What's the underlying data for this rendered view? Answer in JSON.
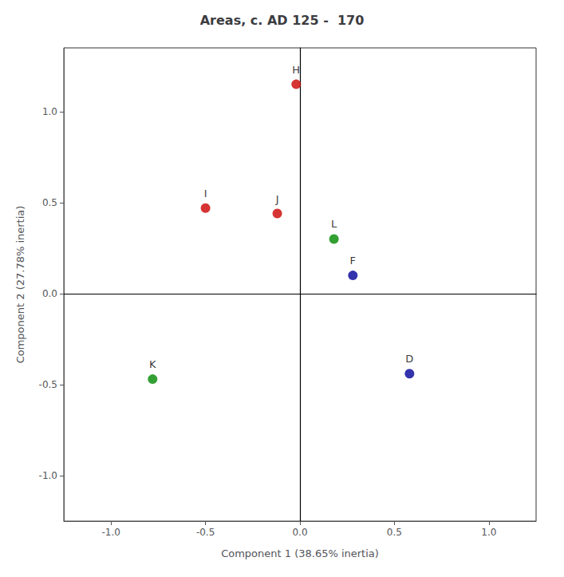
{
  "chart_data": {
    "type": "scatter",
    "title": "Areas, c. AD 125 -  170",
    "xlabel": "Component 1 (38.65% inertia)",
    "ylabel": "Component 2 (27.78% inertia)",
    "labels": [
      "H",
      "I",
      "J",
      "L",
      "F",
      "K",
      "D"
    ],
    "x": [
      -0.02,
      -0.5,
      -0.12,
      0.18,
      0.28,
      -0.78,
      0.58
    ],
    "values": [
      1.15,
      0.47,
      0.44,
      0.3,
      0.1,
      -0.47,
      -0.44
    ],
    "colors": [
      "#cc0000",
      "#cc0000",
      "#cc0000",
      "#008800",
      "#000099",
      "#008800",
      "#000099"
    ],
    "xlim": [
      -1.25,
      1.25
    ],
    "ylim": [
      -1.25,
      1.35
    ],
    "xticks": [
      {
        "value": -1.0,
        "label": "-1.0"
      },
      -0.5,
      {
        "value": 0.0,
        "label": "0.0"
      },
      0.5,
      {
        "value": 1.0,
        "label": "1.0"
      }
    ],
    "yticks": [
      {
        "value": -1.0,
        "label": "-1.0"
      },
      -0.5,
      {
        "value": 0.0,
        "label": "0.0"
      },
      0.5,
      {
        "value": 1.0,
        "label": "1.0"
      }
    ],
    "grid": false
  }
}
